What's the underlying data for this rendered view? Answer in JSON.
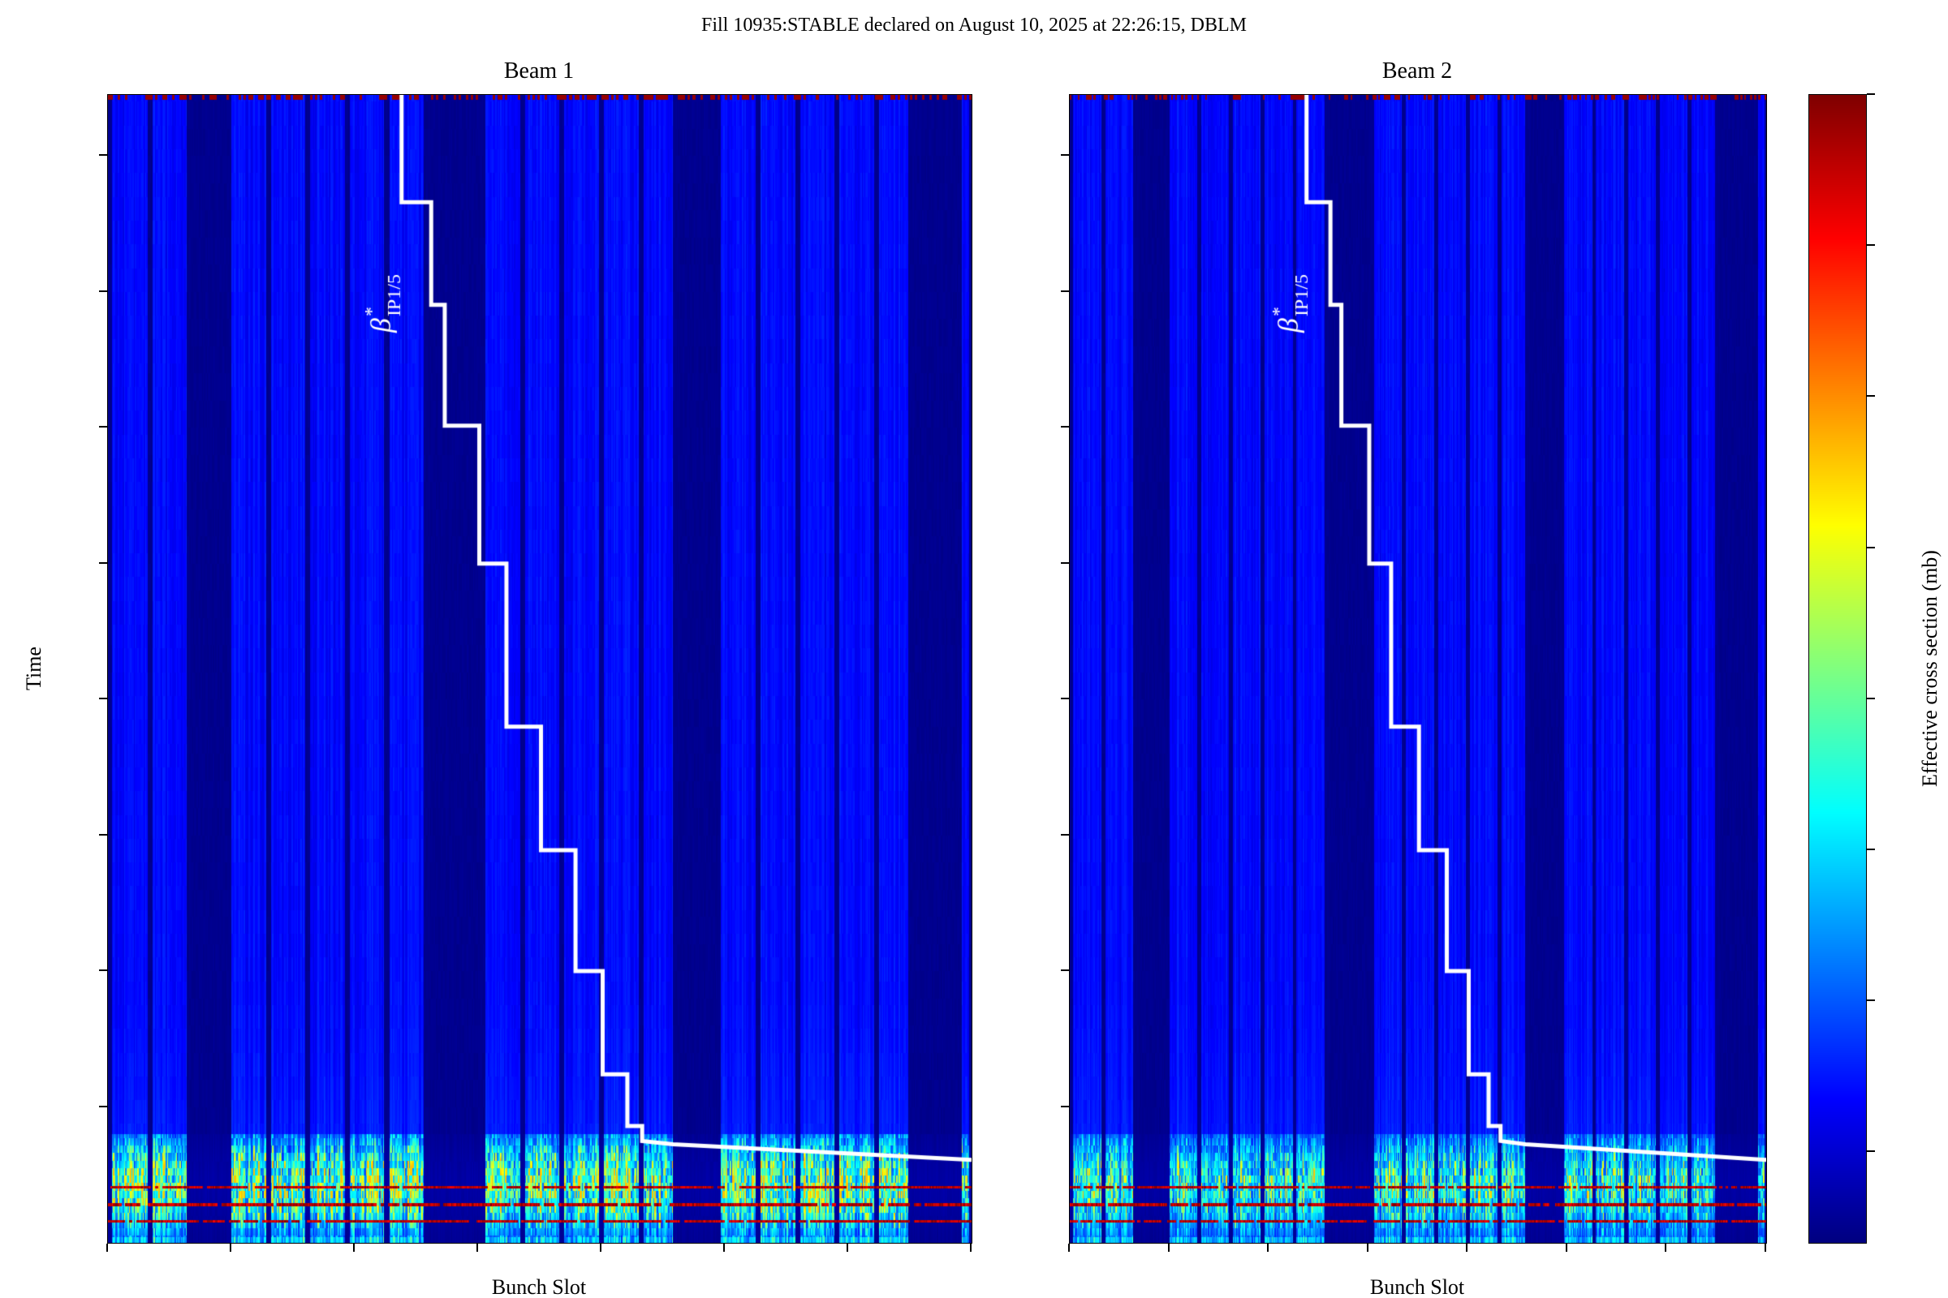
{
  "title": "Fill 10935:STABLE declared on August 10, 2025 at 22:26:15, DBLM",
  "chart_data": {
    "type": "heatmap",
    "panels": [
      {
        "title": "Beam 1"
      },
      {
        "title": "Beam 2"
      }
    ],
    "x_axis": {
      "label": "Bunch Slot",
      "range": [
        1000,
        1700
      ],
      "ticks": [
        1000,
        1100,
        1200,
        1300,
        1400,
        1500,
        1600,
        1700
      ]
    },
    "y_axis": {
      "label": "Time",
      "range": [
        0,
        1690
      ],
      "ticks": [
        200,
        400,
        600,
        800,
        1000,
        1200,
        1400,
        1600
      ]
    },
    "colorbar": {
      "label": "Effective cross section (mb)",
      "colormap": "jet",
      "range": [
        60,
        250
      ],
      "ticks": [
        75,
        100,
        125,
        150,
        175,
        200,
        225,
        250
      ]
    },
    "bunch_trains": [
      [
        1003,
        1032
      ],
      [
        1036,
        1064
      ],
      [
        1100,
        1128
      ],
      [
        1132,
        1160
      ],
      [
        1164,
        1192
      ],
      [
        1196,
        1224
      ],
      [
        1228,
        1256
      ],
      [
        1306,
        1334
      ],
      [
        1338,
        1366
      ],
      [
        1370,
        1398
      ],
      [
        1402,
        1430
      ],
      [
        1434,
        1458
      ],
      [
        1497,
        1525
      ],
      [
        1529,
        1557
      ],
      [
        1561,
        1589
      ],
      [
        1593,
        1621
      ],
      [
        1625,
        1649
      ],
      [
        1692,
        1698
      ]
    ],
    "red_line_times": [
      32,
      56,
      82
    ],
    "bright_region_max_time": 160,
    "haze_region_max_time": 420,
    "beta_star_annotation": {
      "text_beta": "β",
      "text_sup": "*",
      "text_sub": "IP1/5",
      "anchor": [
        1229,
        1340
      ],
      "color": "#ffffff"
    },
    "beta_star_line": {
      "color": "#ffffff",
      "points": [
        [
          1238,
          1690
        ],
        [
          1238,
          1532
        ],
        [
          1262,
          1532
        ],
        [
          1262,
          1381
        ],
        [
          1273,
          1381
        ],
        [
          1273,
          1203
        ],
        [
          1301,
          1203
        ],
        [
          1301,
          1000
        ],
        [
          1323,
          1000
        ],
        [
          1323,
          760
        ],
        [
          1351,
          760
        ],
        [
          1351,
          578
        ],
        [
          1379,
          578
        ],
        [
          1379,
          400
        ],
        [
          1401,
          400
        ],
        [
          1401,
          248
        ],
        [
          1421,
          248
        ],
        [
          1421,
          172
        ],
        [
          1433,
          172
        ],
        [
          1433,
          150
        ],
        [
          1458,
          145
        ],
        [
          1700,
          122
        ]
      ]
    }
  }
}
